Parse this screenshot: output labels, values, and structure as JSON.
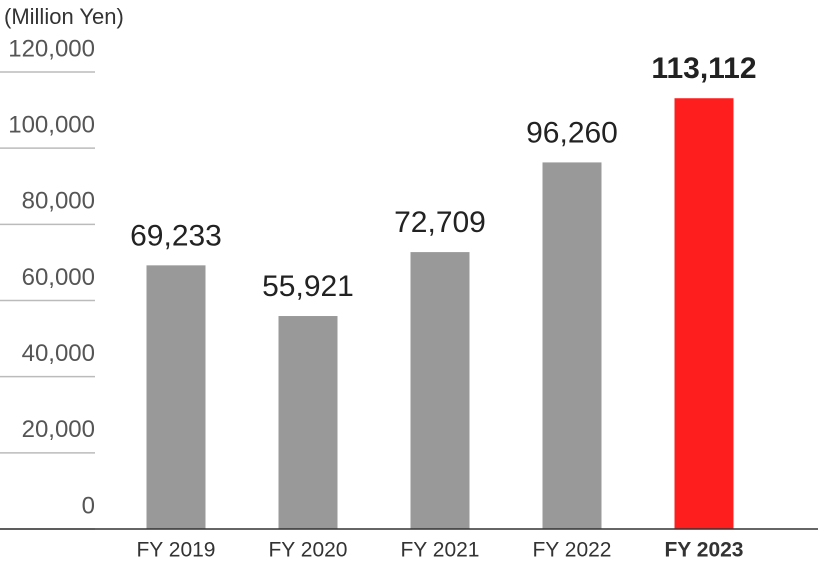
{
  "chart_data": {
    "type": "bar",
    "y_axis_label": "(Million Yen)",
    "categories": [
      "FY 2019",
      "FY 2020",
      "FY 2021",
      "FY 2022",
      "FY 2023"
    ],
    "values": [
      69233,
      55921,
      72709,
      96260,
      113112
    ],
    "value_labels": [
      "69,233",
      "55,921",
      "72,709",
      "96,260",
      "113,112"
    ],
    "colors": [
      "#999999",
      "#999999",
      "#999999",
      "#999999",
      "#ff1e1e"
    ],
    "ylim": [
      0,
      120000
    ],
    "yticks": [
      0,
      {
        "value": 20000,
        "label": "20,000"
      },
      {
        "value": 40000,
        "label": "40,000"
      },
      {
        "value": 60000,
        "label": "60,000"
      },
      {
        "value": 80000,
        "label": "80,000"
      },
      {
        "value": 100000,
        "label": "100,000"
      },
      {
        "value": 120000,
        "label": "120,000"
      }
    ],
    "grid": true
  }
}
